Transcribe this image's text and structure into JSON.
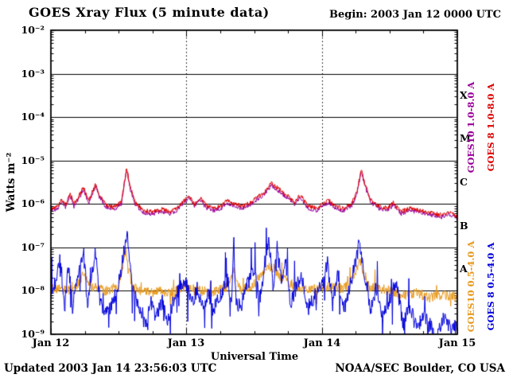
{
  "header": {
    "title": "GOES Xray Flux (5 minute data)",
    "begin": "Begin: 2003 Jan 12 0000 UTC"
  },
  "footer": {
    "updated": "Updated 2003 Jan 14 23:56:03 UTC",
    "credit": "NOAA/SEC Boulder, CO USA"
  },
  "chart_data": {
    "type": "line",
    "title": "GOES Xray Flux (5 minute data)",
    "xlabel": "Universal Time",
    "ylabel": "Watts m⁻²",
    "x_ticks": [
      "Jan 12",
      "Jan 13",
      "Jan 14",
      "Jan 15"
    ],
    "x_range_days": [
      0,
      3
    ],
    "ylog_range": [
      -9,
      -2
    ],
    "y_tick_labels": [
      "10⁻²",
      "10⁻³",
      "10⁻⁴",
      "10⁻⁵",
      "10⁻⁶",
      "10⁻⁷",
      "10⁻⁸",
      "10⁻⁹"
    ],
    "grid": {
      "h_decades": [
        -3,
        -4,
        -5,
        -6,
        -7,
        -8
      ],
      "v_dotted_days": [
        1,
        2
      ]
    },
    "flare_classes": [
      {
        "label": "X",
        "log_center": -3.5
      },
      {
        "label": "M",
        "log_center": -4.5
      },
      {
        "label": "C",
        "log_center": -5.5
      },
      {
        "label": "B",
        "log_center": -6.5
      },
      {
        "label": "A",
        "log_center": -7.5
      }
    ],
    "colors": {
      "goes10_long": "#990099",
      "goes8_long": "#dd0000",
      "goes10_short": "#e8991c",
      "goes8_short": "#0000dd",
      "axis": "#000000",
      "background": "#ffffff"
    },
    "right_labels": [
      {
        "text": "GOES10 1.0-8.0 A",
        "color_key": "goes10_long"
      },
      {
        "text": "GOES 8 1.0-8.0 A",
        "color_key": "goes8_long"
      },
      {
        "text": "GOES10 0.5-4.0 A",
        "color_key": "goes10_short"
      },
      {
        "text": "GOES 8 0.5-4.0 A",
        "color_key": "goes8_short"
      }
    ],
    "noise_seed": 42,
    "series": [
      {
        "name": "GOES10 0.5-4.0 A",
        "color_key": "goes10_short",
        "noise": 0.12,
        "spike_prob": 0.02,
        "spike_amp": 0.4,
        "dip_prob": 0.02,
        "dip_amp": 0.3,
        "points": [
          [
            0.0,
            -7.9
          ],
          [
            0.1,
            -8.0
          ],
          [
            0.2,
            -7.85
          ],
          [
            0.24,
            -7.6
          ],
          [
            0.3,
            -7.9
          ],
          [
            0.4,
            -8.0
          ],
          [
            0.5,
            -7.9
          ],
          [
            0.55,
            -7.1
          ],
          [
            0.6,
            -7.9
          ],
          [
            0.7,
            -8.05
          ],
          [
            0.8,
            -8.0
          ],
          [
            0.9,
            -8.05
          ],
          [
            1.0,
            -7.9
          ],
          [
            1.1,
            -8.0
          ],
          [
            1.2,
            -8.05
          ],
          [
            1.3,
            -7.9
          ],
          [
            1.35,
            -7.5
          ],
          [
            1.4,
            -8.0
          ],
          [
            1.5,
            -7.85
          ],
          [
            1.6,
            -7.4
          ],
          [
            1.65,
            -7.5
          ],
          [
            1.7,
            -7.7
          ],
          [
            1.8,
            -7.9
          ],
          [
            1.9,
            -8.0
          ],
          [
            2.0,
            -7.9
          ],
          [
            2.1,
            -7.95
          ],
          [
            2.2,
            -7.9
          ],
          [
            2.28,
            -7.3
          ],
          [
            2.35,
            -7.9
          ],
          [
            2.5,
            -8.0
          ],
          [
            2.6,
            -8.1
          ],
          [
            2.7,
            -8.05
          ],
          [
            2.8,
            -8.15
          ],
          [
            2.9,
            -8.1
          ],
          [
            3.0,
            -8.15
          ]
        ]
      },
      {
        "name": "GOES 8 0.5-4.0 A",
        "color_key": "goes8_short",
        "noise": 0.18,
        "spike_prob": 0.04,
        "spike_amp": 0.9,
        "dip_prob": 0.05,
        "dip_amp": 0.7,
        "points": [
          [
            0.0,
            -8.1
          ],
          [
            0.04,
            -7.7
          ],
          [
            0.07,
            -7.25
          ],
          [
            0.1,
            -8.3
          ],
          [
            0.13,
            -7.45
          ],
          [
            0.16,
            -8.4
          ],
          [
            0.2,
            -7.55
          ],
          [
            0.24,
            -7.05
          ],
          [
            0.27,
            -8.3
          ],
          [
            0.3,
            -7.6
          ],
          [
            0.33,
            -7.1
          ],
          [
            0.36,
            -8.2
          ],
          [
            0.4,
            -8.55
          ],
          [
            0.45,
            -8.3
          ],
          [
            0.5,
            -7.85
          ],
          [
            0.545,
            -7.0
          ],
          [
            0.56,
            -6.62
          ],
          [
            0.59,
            -7.6
          ],
          [
            0.62,
            -8.1
          ],
          [
            0.66,
            -8.55
          ],
          [
            0.7,
            -8.75
          ],
          [
            0.74,
            -8.3
          ],
          [
            0.78,
            -8.6
          ],
          [
            0.82,
            -8.2
          ],
          [
            0.86,
            -8.65
          ],
          [
            0.9,
            -8.3
          ],
          [
            0.95,
            -7.95
          ],
          [
            1.0,
            -7.85
          ],
          [
            1.04,
            -8.3
          ],
          [
            1.08,
            -7.95
          ],
          [
            1.12,
            -8.4
          ],
          [
            1.16,
            -8.05
          ],
          [
            1.2,
            -8.45
          ],
          [
            1.25,
            -8.1
          ],
          [
            1.3,
            -7.75
          ],
          [
            1.335,
            -8.2
          ],
          [
            1.35,
            -6.9
          ],
          [
            1.365,
            -8.2
          ],
          [
            1.4,
            -8.4
          ],
          [
            1.45,
            -7.85
          ],
          [
            1.5,
            -7.55
          ],
          [
            1.54,
            -8.2
          ],
          [
            1.58,
            -7.35
          ],
          [
            1.61,
            -6.85
          ],
          [
            1.64,
            -8.0
          ],
          [
            1.67,
            -6.95
          ],
          [
            1.7,
            -7.8
          ],
          [
            1.73,
            -7.25
          ],
          [
            1.77,
            -8.3
          ],
          [
            1.81,
            -7.95
          ],
          [
            1.85,
            -7.6
          ],
          [
            1.9,
            -8.4
          ],
          [
            1.95,
            -8.1
          ],
          [
            2.0,
            -7.9
          ],
          [
            2.04,
            -7.35
          ],
          [
            2.08,
            -8.3
          ],
          [
            2.12,
            -7.6
          ],
          [
            2.16,
            -8.5
          ],
          [
            2.2,
            -8.0
          ],
          [
            2.24,
            -7.45
          ],
          [
            2.28,
            -6.85
          ],
          [
            2.32,
            -7.8
          ],
          [
            2.36,
            -8.4
          ],
          [
            2.4,
            -7.95
          ],
          [
            2.45,
            -8.6
          ],
          [
            2.5,
            -8.2
          ],
          [
            2.55,
            -7.75
          ],
          [
            2.6,
            -8.8
          ],
          [
            2.65,
            -8.35
          ],
          [
            2.7,
            -8.9
          ],
          [
            2.75,
            -8.5
          ],
          [
            2.8,
            -8.8
          ],
          [
            2.85,
            -9.0
          ],
          [
            2.9,
            -8.6
          ],
          [
            2.95,
            -8.9
          ],
          [
            3.0,
            -8.8
          ]
        ]
      },
      {
        "name": "GOES10 1.0-8.0 A",
        "color_key": "goes10_long",
        "noise": 0.05,
        "spike_prob": 0,
        "spike_amp": 0,
        "dip_prob": 0,
        "dip_amp": 0,
        "points": [
          [
            0.0,
            -6.15
          ],
          [
            0.05,
            -6.1
          ],
          [
            0.08,
            -5.95
          ],
          [
            0.11,
            -6.07
          ],
          [
            0.14,
            -5.8
          ],
          [
            0.17,
            -6.05
          ],
          [
            0.21,
            -5.85
          ],
          [
            0.24,
            -5.67
          ],
          [
            0.28,
            -5.97
          ],
          [
            0.33,
            -5.6
          ],
          [
            0.36,
            -5.85
          ],
          [
            0.4,
            -6.05
          ],
          [
            0.46,
            -6.13
          ],
          [
            0.52,
            -6.0
          ],
          [
            0.545,
            -5.5
          ],
          [
            0.56,
            -5.22
          ],
          [
            0.585,
            -5.65
          ],
          [
            0.62,
            -6.0
          ],
          [
            0.68,
            -6.2
          ],
          [
            0.75,
            -6.23
          ],
          [
            0.82,
            -6.17
          ],
          [
            0.88,
            -6.23
          ],
          [
            0.93,
            -6.15
          ],
          [
            0.98,
            -5.97
          ],
          [
            1.02,
            -5.85
          ],
          [
            1.06,
            -6.05
          ],
          [
            1.1,
            -5.9
          ],
          [
            1.15,
            -6.1
          ],
          [
            1.2,
            -6.15
          ],
          [
            1.26,
            -6.1
          ],
          [
            1.3,
            -5.97
          ],
          [
            1.35,
            -6.05
          ],
          [
            1.42,
            -6.1
          ],
          [
            1.48,
            -6.0
          ],
          [
            1.53,
            -5.87
          ],
          [
            1.58,
            -5.77
          ],
          [
            1.63,
            -5.57
          ],
          [
            1.68,
            -5.7
          ],
          [
            1.74,
            -5.85
          ],
          [
            1.8,
            -6.0
          ],
          [
            1.84,
            -5.85
          ],
          [
            1.9,
            -6.1
          ],
          [
            1.96,
            -6.15
          ],
          [
            2.0,
            -6.07
          ],
          [
            2.05,
            -5.97
          ],
          [
            2.1,
            -6.1
          ],
          [
            2.16,
            -6.15
          ],
          [
            2.22,
            -6.05
          ],
          [
            2.26,
            -5.75
          ],
          [
            2.29,
            -5.25
          ],
          [
            2.32,
            -5.6
          ],
          [
            2.36,
            -5.95
          ],
          [
            2.42,
            -6.1
          ],
          [
            2.48,
            -6.15
          ],
          [
            2.53,
            -6.02
          ],
          [
            2.58,
            -6.23
          ],
          [
            2.65,
            -6.15
          ],
          [
            2.72,
            -6.2
          ],
          [
            2.8,
            -6.25
          ],
          [
            2.88,
            -6.3
          ],
          [
            2.94,
            -6.25
          ],
          [
            3.0,
            -6.33
          ]
        ]
      },
      {
        "name": "GOES 8 1.0-8.0 A",
        "color_key": "goes8_long",
        "noise": 0.05,
        "spike_prob": 0,
        "spike_amp": 0,
        "dip_prob": 0,
        "dip_amp": 0,
        "points": [
          [
            0.0,
            -6.1
          ],
          [
            0.05,
            -6.05
          ],
          [
            0.08,
            -5.9
          ],
          [
            0.11,
            -6.02
          ],
          [
            0.14,
            -5.75
          ],
          [
            0.17,
            -6.0
          ],
          [
            0.21,
            -5.8
          ],
          [
            0.24,
            -5.62
          ],
          [
            0.28,
            -5.92
          ],
          [
            0.33,
            -5.55
          ],
          [
            0.36,
            -5.8
          ],
          [
            0.4,
            -6.0
          ],
          [
            0.46,
            -6.08
          ],
          [
            0.52,
            -5.95
          ],
          [
            0.545,
            -5.45
          ],
          [
            0.56,
            -5.17
          ],
          [
            0.585,
            -5.6
          ],
          [
            0.62,
            -5.95
          ],
          [
            0.68,
            -6.15
          ],
          [
            0.75,
            -6.18
          ],
          [
            0.82,
            -6.12
          ],
          [
            0.88,
            -6.18
          ],
          [
            0.93,
            -6.1
          ],
          [
            0.98,
            -5.92
          ],
          [
            1.02,
            -5.8
          ],
          [
            1.06,
            -6.0
          ],
          [
            1.1,
            -5.85
          ],
          [
            1.15,
            -6.05
          ],
          [
            1.2,
            -6.1
          ],
          [
            1.26,
            -6.05
          ],
          [
            1.3,
            -5.92
          ],
          [
            1.35,
            -6.0
          ],
          [
            1.42,
            -6.05
          ],
          [
            1.48,
            -5.95
          ],
          [
            1.53,
            -5.82
          ],
          [
            1.58,
            -5.72
          ],
          [
            1.63,
            -5.52
          ],
          [
            1.68,
            -5.65
          ],
          [
            1.74,
            -5.8
          ],
          [
            1.8,
            -5.95
          ],
          [
            1.84,
            -5.8
          ],
          [
            1.9,
            -6.05
          ],
          [
            1.96,
            -6.1
          ],
          [
            2.0,
            -6.02
          ],
          [
            2.05,
            -5.92
          ],
          [
            2.1,
            -6.05
          ],
          [
            2.16,
            -6.1
          ],
          [
            2.22,
            -6.0
          ],
          [
            2.26,
            -5.7
          ],
          [
            2.29,
            -5.2
          ],
          [
            2.32,
            -5.55
          ],
          [
            2.36,
            -5.9
          ],
          [
            2.42,
            -6.05
          ],
          [
            2.48,
            -6.1
          ],
          [
            2.53,
            -5.97
          ],
          [
            2.58,
            -6.18
          ],
          [
            2.65,
            -6.1
          ],
          [
            2.72,
            -6.15
          ],
          [
            2.8,
            -6.2
          ],
          [
            2.88,
            -6.25
          ],
          [
            2.94,
            -6.2
          ],
          [
            3.0,
            -6.28
          ]
        ]
      }
    ]
  }
}
